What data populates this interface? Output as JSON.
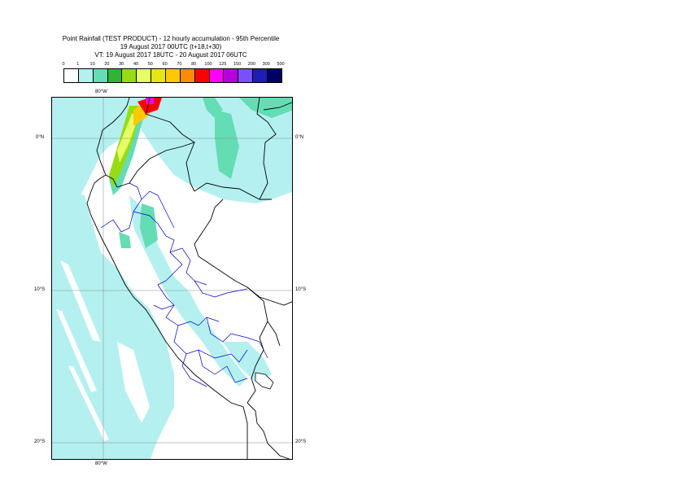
{
  "title": {
    "line1": "Point Rainfall (TEST PRODUCT) - 12 hourly accumulation - 95th Percentile",
    "line2": "19 August 2017 00UTC (t+18,t+30)",
    "line3": "VT: 19 August 2017 18UTC - 20 August 2017 06UTC"
  },
  "legend": {
    "labels": [
      "0",
      "1",
      "10",
      "20",
      "30",
      "40",
      "50",
      "60",
      "70",
      "80",
      "100",
      "125",
      "150",
      "200",
      "300",
      "500"
    ],
    "colors": [
      "#ffffff",
      "#b4f0f0",
      "#64dcb4",
      "#32b432",
      "#96dc14",
      "#e6ff64",
      "#e6e614",
      "#ffc800",
      "#ff8c00",
      "#ff0000",
      "#ff00ff",
      "#b400dc",
      "#7850ff",
      "#1e1eb4",
      "#000064"
    ]
  },
  "axes": {
    "lon_top": "80°W",
    "lon_bottom": "80°W",
    "lat_0_left": "0°N",
    "lat_0_right": "0°N",
    "lat_10_left": "10°S",
    "lat_10_right": "10°S",
    "lat_20_left": "20°S",
    "lat_20_right": "20°S"
  },
  "map": {
    "background_color": "#ffffff",
    "coast_color": "#000000",
    "admin_color": "#0000c8"
  }
}
